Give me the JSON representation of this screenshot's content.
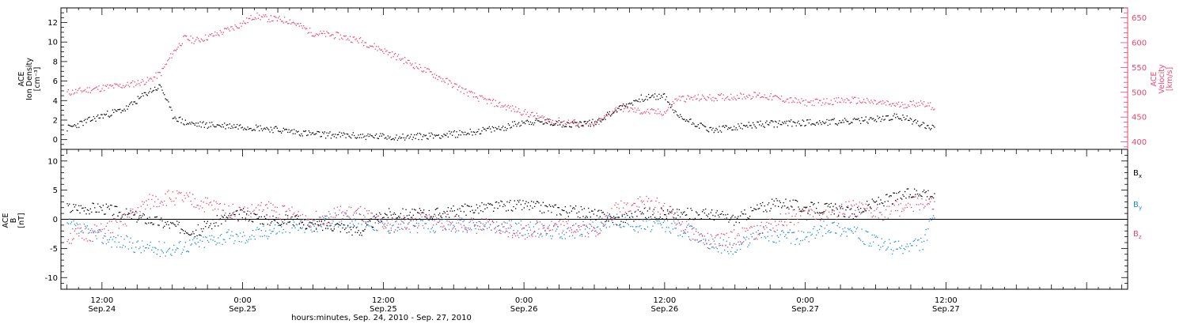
{
  "colors": {
    "black": "#000000",
    "red": "#e8456e",
    "blue": "#1e88e5"
  },
  "x_axis": {
    "label": "hours:minutes, Sep. 24, 2010 - Sep. 27, 2010",
    "range_hours": [
      -3.5,
      87.5
    ],
    "major_ticks": [
      {
        "h": 0,
        "time": "12:00",
        "date": "Sep.24"
      },
      {
        "h": 12,
        "time": "0:00",
        "date": "Sep.25"
      },
      {
        "h": 24,
        "time": "12:00",
        "date": "Sep.25"
      },
      {
        "h": 36,
        "time": "0:00",
        "date": "Sep.26"
      },
      {
        "h": 48,
        "time": "12:00",
        "date": "Sep.26"
      },
      {
        "h": 60,
        "time": "0:00",
        "date": "Sep.27"
      },
      {
        "h": 72,
        "time": "12:00",
        "date": "Sep.27"
      }
    ]
  },
  "chart_data": [
    {
      "type": "scatter",
      "panel": "top",
      "ylabel_left": [
        "ACE",
        "Ion Density",
        "[cm⁻³]"
      ],
      "ylabel_right": [
        "ACE",
        "Velocity",
        "[km/s]"
      ],
      "ylim_left": [
        -1,
        13.5
      ],
      "ylim_right": [
        385,
        670
      ],
      "yticks_left": [
        0,
        2,
        4,
        6,
        8,
        10,
        12
      ],
      "yticks_right": [
        400,
        450,
        500,
        550,
        600,
        650
      ],
      "series": [
        {
          "axis": "left",
          "color": "#000000",
          "x": [
            -3,
            0,
            2,
            4,
            5,
            6,
            7,
            8,
            10,
            12,
            14,
            18,
            22,
            26,
            30,
            34,
            36,
            38,
            40,
            42,
            44,
            46,
            48,
            49,
            52,
            56,
            60,
            64,
            68,
            70,
            71
          ],
          "y": [
            1.2,
            2.5,
            3.2,
            5.0,
            5.5,
            2.5,
            1.8,
            1.6,
            1.5,
            1.4,
            1.2,
            0.6,
            0.4,
            0.3,
            0.6,
            1.2,
            1.9,
            1.8,
            1.6,
            1.8,
            3.2,
            4.3,
            4.5,
            2.5,
            1.0,
            1.6,
            1.8,
            1.9,
            2.4,
            1.6,
            1.2
          ]
        },
        {
          "axis": "right",
          "color": "#e8456e",
          "x": [
            -3,
            0,
            2,
            4,
            5,
            6,
            7,
            8,
            10,
            12,
            13,
            14,
            16,
            18,
            20,
            22,
            24,
            28,
            32,
            36,
            38,
            40,
            42,
            44,
            46,
            48,
            49,
            52,
            56,
            60,
            64,
            68,
            70,
            71
          ],
          "y": [
            500,
            510,
            515,
            525,
            540,
            580,
            610,
            605,
            620,
            640,
            655,
            650,
            645,
            620,
            615,
            605,
            585,
            540,
            490,
            460,
            445,
            440,
            435,
            470,
            462,
            460,
            488,
            490,
            495,
            480,
            485,
            475,
            480,
            470
          ]
        }
      ]
    },
    {
      "type": "scatter",
      "panel": "bottom",
      "ylabel_left": [
        "ACE",
        "B",
        "[nT]"
      ],
      "ylim": [
        -12,
        12
      ],
      "yticks": [
        -10,
        -5,
        0,
        5,
        10
      ],
      "series": [
        {
          "name": "Bx",
          "color": "#000000",
          "x": [
            -3,
            0,
            2,
            4,
            6,
            8,
            10,
            12,
            14,
            16,
            18,
            20,
            22,
            24,
            28,
            32,
            36,
            38,
            40,
            42,
            44,
            46,
            48,
            50,
            52,
            54,
            56,
            58,
            60,
            62,
            64,
            66,
            68,
            70,
            71
          ],
          "y": [
            2,
            2,
            1,
            0,
            -1,
            -2,
            0,
            1,
            0,
            0,
            -1,
            -1,
            -2,
            1,
            1,
            2,
            2.5,
            2,
            1.5,
            1,
            0,
            1,
            1,
            1,
            1,
            0,
            2,
            3,
            2,
            2,
            1,
            3,
            4,
            5,
            4
          ]
        },
        {
          "name": "By",
          "color": "#1e88e5",
          "x": [
            -3,
            0,
            2,
            4,
            6,
            8,
            10,
            12,
            14,
            16,
            18,
            20,
            22,
            24,
            28,
            32,
            36,
            38,
            40,
            42,
            44,
            46,
            48,
            50,
            52,
            54,
            56,
            58,
            60,
            62,
            64,
            66,
            68,
            70,
            71
          ],
          "y": [
            -1,
            -3,
            -4,
            -5,
            -5,
            -4,
            -3,
            -3,
            -2,
            -1,
            -1,
            0,
            0,
            -1,
            -1,
            -1,
            -1.5,
            -2,
            -2,
            -1,
            0,
            -1,
            -1,
            -2,
            -4,
            -5,
            -2,
            -3,
            -3,
            -1,
            -2,
            -4,
            -5,
            -4,
            1
          ]
        },
        {
          "name": "Bz",
          "color": "#e8456e",
          "x": [
            -3,
            0,
            2,
            4,
            6,
            8,
            10,
            12,
            14,
            16,
            18,
            20,
            22,
            24,
            28,
            32,
            36,
            38,
            40,
            42,
            44,
            46,
            48,
            50,
            52,
            54,
            56,
            58,
            60,
            62,
            64,
            66,
            68,
            70,
            71
          ],
          "y": [
            -3,
            -2,
            0,
            3,
            4,
            3,
            2,
            1,
            2,
            1,
            0,
            1,
            1,
            -1,
            0,
            -1,
            -2,
            -1,
            -1,
            -2,
            2,
            3,
            2,
            -2,
            -4,
            -3,
            -2,
            0,
            1,
            1,
            2,
            1,
            2,
            3,
            2
          ]
        }
      ],
      "legend_placement": "right",
      "zero_line": true
    }
  ]
}
